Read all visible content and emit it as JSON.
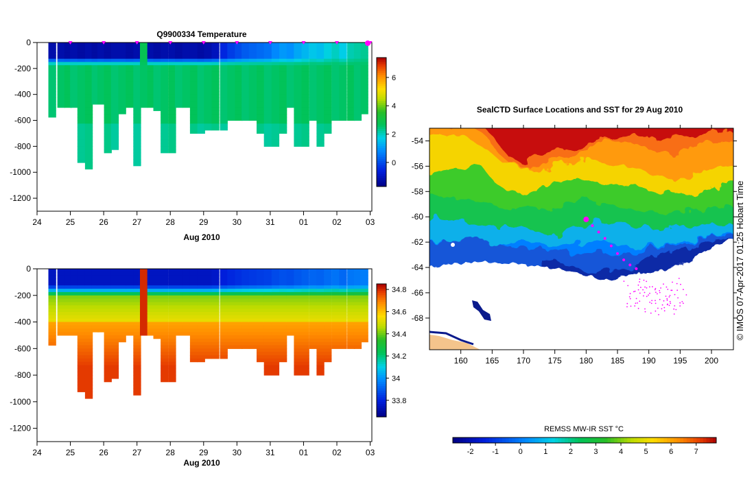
{
  "chart_data": [
    {
      "type": "heatmap",
      "title": "Q9900334  Temperature",
      "xlabel": "Aug 2010",
      "x_ticks": [
        "24",
        "25",
        "26",
        "27",
        "28",
        "29",
        "30",
        "31",
        "01",
        "02",
        "03"
      ],
      "y_ticks": [
        "0",
        "-200",
        "-400",
        "-600",
        "-800",
        "-1000",
        "-1200"
      ],
      "ylim": [
        -1300,
        0
      ],
      "xlim": [
        24,
        34.05
      ],
      "colorbar": {
        "ticks": [
          "0",
          "2",
          "4",
          "6"
        ],
        "min": -1.7,
        "max": 7.4
      },
      "profile_times": [
        24.45,
        24.72,
        24.93,
        25.1,
        25.32,
        25.55,
        25.75,
        25.92,
        26.12,
        26.33,
        26.55,
        26.77,
        27.0,
        27.2,
        27.42,
        27.6,
        27.82,
        28.05,
        28.25,
        28.47,
        28.7,
        28.92,
        29.12,
        29.35,
        29.6,
        29.82,
        30.05,
        30.25,
        30.47,
        30.7,
        30.92,
        31.15,
        31.38,
        31.6,
        31.82,
        32.05,
        32.28,
        32.5,
        32.72,
        32.95,
        33.18,
        33.42,
        33.62,
        33.82
      ],
      "profile_depths": [
        560,
        500,
        500,
        500,
        920,
        960,
        460,
        470,
        850,
        820,
        540,
        500,
        950,
        490,
        490,
        520,
        840,
        840,
        500,
        500,
        700,
        700,
        660,
        660,
        660,
        600,
        600,
        600,
        600,
        680,
        790,
        790,
        700,
        500,
        780,
        780,
        600,
        780,
        680,
        600,
        600,
        600,
        600,
        540
      ],
      "surface_layer_temp": [
        -1.2,
        -1.2,
        -1.3,
        -1.2,
        -1.3,
        -1.2,
        -1.3,
        -1.2,
        -1.3,
        -1.2,
        -1.2,
        -1.3,
        -1.2,
        2.8,
        -1.2,
        -1.3,
        -1.2,
        -1.2,
        -1.3,
        -1.2,
        -1.2,
        -1.3,
        -1.2,
        -1.0,
        -0.5,
        -0.2,
        0.0,
        0.2,
        0.3,
        0.4,
        0.5,
        0.8,
        1.0,
        0.9,
        1.2,
        1.4,
        1.6,
        1.5,
        1.8,
        2.0,
        1.7,
        2.1,
        2.2,
        2.3
      ],
      "deep_layer_temp": 2.6
    },
    {
      "type": "heatmap",
      "title": "",
      "xlabel": "Aug 2010",
      "x_ticks": [
        "24",
        "25",
        "26",
        "27",
        "28",
        "29",
        "30",
        "31",
        "01",
        "02",
        "03"
      ],
      "y_ticks": [
        "0",
        "-200",
        "-400",
        "-600",
        "-800",
        "-1000",
        "-1200"
      ],
      "ylim": [
        -1300,
        0
      ],
      "colorbar": {
        "ticks": [
          "33.8",
          "34",
          "34.2",
          "34.4",
          "34.6",
          "34.8"
        ],
        "min": 33.65,
        "max": 34.85
      },
      "surface_layer_value": 33.75,
      "deep_layer_value": 34.65
    },
    {
      "type": "heatmap",
      "title": "SealCTD Surface Locations and SST for 29 Aug 2010",
      "x_ticks": [
        "160",
        "165",
        "170",
        "175",
        "180",
        "185",
        "190",
        "195",
        "200"
      ],
      "y_ticks": [
        "-54",
        "-56",
        "-58",
        "-60",
        "-62",
        "-64",
        "-66",
        "-68"
      ],
      "xlim": [
        155,
        203.5
      ],
      "ylim": [
        -70.5,
        -53
      ],
      "current_position": [
        180,
        -60.2
      ],
      "track_points": [
        [
          181,
          -60.7
        ],
        [
          182,
          -61.2
        ],
        [
          183,
          -61.7
        ],
        [
          184,
          -62.3
        ],
        [
          185,
          -62.9
        ],
        [
          186,
          -63.4
        ],
        [
          187,
          -63.8
        ],
        [
          188,
          -64.1
        ]
      ],
      "colorbar_label": "REMSS MW-IR SST °C",
      "colorbar_ticks": [
        "-2",
        "-1",
        "0",
        "1",
        "2",
        "3",
        "4",
        "5",
        "6",
        "7"
      ],
      "colorbar_min": -2.7,
      "colorbar_max": 7.8
    }
  ],
  "side_note": "© IMOS 07-Apr-2017 01:25 Hobart Time"
}
